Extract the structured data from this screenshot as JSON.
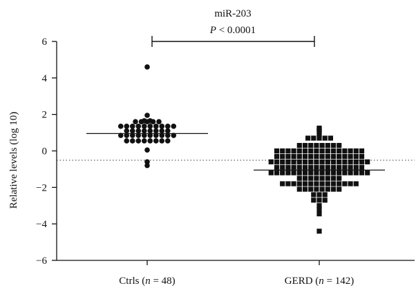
{
  "chart_data": {
    "type": "scatter",
    "title": "miR-203",
    "annotation": {
      "p_prefix": "P",
      "p_rest": " < 0.0001"
    },
    "ylabel": "Relative levels (log 10)",
    "ylim": [
      -6,
      6
    ],
    "yticks": [
      "6",
      "4",
      "2",
      "0",
      "−2",
      "−4",
      "−6"
    ],
    "ytick_values": [
      6,
      4,
      2,
      0,
      -2,
      -4,
      -6
    ],
    "zero_line": "dotted",
    "groups": [
      {
        "key": "ctrls",
        "label_prefix": "Ctrls (",
        "label_n": "n",
        "label_suffix": " = 48)",
        "marker": "circle",
        "median": 0.95,
        "values": [
          4.6,
          1.95,
          1.65,
          1.65,
          1.6,
          1.6,
          1.6,
          1.6,
          1.6,
          1.35,
          1.35,
          1.35,
          1.35,
          1.35,
          1.35,
          1.35,
          1.35,
          1.35,
          1.35,
          1.1,
          1.1,
          1.1,
          1.1,
          1.1,
          1.1,
          1.1,
          1.1,
          0.85,
          0.85,
          0.85,
          0.85,
          0.85,
          0.85,
          0.85,
          0.85,
          0.85,
          0.85,
          0.55,
          0.55,
          0.55,
          0.55,
          0.55,
          0.55,
          0.55,
          0.55,
          0.05,
          -0.6,
          -0.8
        ]
      },
      {
        "key": "gerd",
        "label_prefix": "GERD (",
        "label_n": "n",
        "label_suffix": " = 142)",
        "marker": "square",
        "median": -1.05,
        "values": [
          1.25,
          1.2,
          1.15,
          1.05,
          0.9,
          0.7,
          0.7,
          0.7,
          0.7,
          0.7,
          0.3,
          0.3,
          0.3,
          0.3,
          0.3,
          0.3,
          0.3,
          0.3,
          0.0,
          0.0,
          0.0,
          0.0,
          0.0,
          0.0,
          0.0,
          0.0,
          0.0,
          0.0,
          0.0,
          0.0,
          0.0,
          0.0,
          0.0,
          0.0,
          -0.3,
          -0.3,
          -0.3,
          -0.3,
          -0.3,
          -0.3,
          -0.3,
          -0.3,
          -0.3,
          -0.3,
          -0.3,
          -0.3,
          -0.3,
          -0.3,
          -0.3,
          -0.3,
          -0.6,
          -0.6,
          -0.6,
          -0.6,
          -0.6,
          -0.6,
          -0.6,
          -0.6,
          -0.6,
          -0.6,
          -0.6,
          -0.6,
          -0.6,
          -0.6,
          -0.6,
          -0.6,
          -0.6,
          -0.6,
          -0.9,
          -0.9,
          -0.9,
          -0.9,
          -0.9,
          -0.9,
          -0.9,
          -0.9,
          -0.9,
          -0.9,
          -0.9,
          -0.9,
          -0.9,
          -0.9,
          -0.9,
          -0.9,
          -1.2,
          -1.2,
          -1.2,
          -1.2,
          -1.2,
          -1.2,
          -1.2,
          -1.2,
          -1.2,
          -1.2,
          -1.2,
          -1.2,
          -1.2,
          -1.2,
          -1.2,
          -1.2,
          -1.2,
          -1.2,
          -1.5,
          -1.5,
          -1.5,
          -1.5,
          -1.5,
          -1.5,
          -1.5,
          -1.5,
          -1.8,
          -1.8,
          -1.8,
          -1.8,
          -1.8,
          -1.8,
          -1.8,
          -1.8,
          -1.8,
          -1.8,
          -1.8,
          -1.8,
          -1.8,
          -1.8,
          -2.1,
          -2.1,
          -2.1,
          -2.1,
          -2.1,
          -2.1,
          -2.1,
          -2.1,
          -2.4,
          -2.4,
          -2.4,
          -2.7,
          -2.7,
          -2.7,
          -3.0,
          -3.2,
          -3.45,
          -4.4
        ]
      }
    ]
  }
}
